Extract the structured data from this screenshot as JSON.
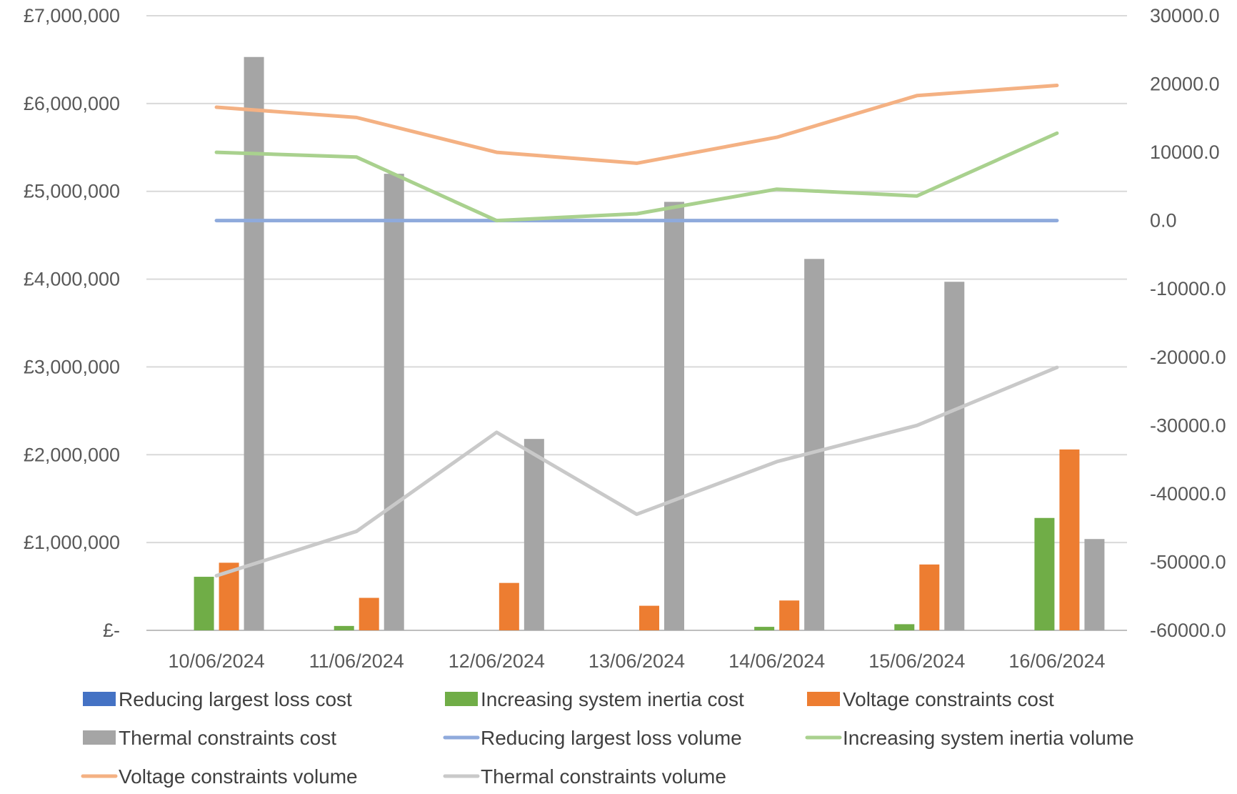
{
  "chart_data": {
    "type": "bar",
    "categories": [
      "10/06/2024",
      "11/06/2024",
      "12/06/2024",
      "13/06/2024",
      "14/06/2024",
      "15/06/2024",
      "16/06/2024"
    ],
    "y_left": {
      "range": [
        0,
        7000000
      ],
      "ticks": [
        0,
        1000000,
        2000000,
        3000000,
        4000000,
        5000000,
        6000000,
        7000000
      ],
      "tick_labels": [
        "£-",
        "£1,000,000",
        "£2,000,000",
        "£3,000,000",
        "£4,000,000",
        "£5,000,000",
        "£6,000,000",
        "£7,000,000"
      ]
    },
    "y_right": {
      "range": [
        -60000,
        30000
      ],
      "ticks": [
        -60000,
        -50000,
        -40000,
        -30000,
        -20000,
        -10000,
        0,
        10000,
        20000,
        30000
      ],
      "tick_labels": [
        "-60000.0",
        "-50000.0",
        "-40000.0",
        "-30000.0",
        "-20000.0",
        "-10000.0",
        "0.0",
        "10000.0",
        "20000.0",
        "30000.0"
      ]
    },
    "grid": true,
    "legend_position": "bottom",
    "bar_series": [
      {
        "name": "Reducing largest loss cost",
        "color": "#4472C4",
        "values": [
          0,
          0,
          0,
          0,
          0,
          0,
          0
        ]
      },
      {
        "name": "Increasing system inertia cost",
        "color": "#70AD47",
        "values": [
          610000,
          50000,
          0,
          0,
          40000,
          70000,
          1280000
        ]
      },
      {
        "name": "Voltage constraints cost",
        "color": "#ED7D31",
        "values": [
          770000,
          370000,
          540000,
          280000,
          340000,
          750000,
          2060000
        ]
      },
      {
        "name": "Thermal constraints cost",
        "color": "#A5A5A5",
        "values": [
          6530000,
          5200000,
          2180000,
          4880000,
          4230000,
          3970000,
          1040000
        ]
      }
    ],
    "line_series": [
      {
        "name": "Reducing largest loss volume",
        "color": "#8FAADC",
        "values": [
          0,
          0,
          0,
          0,
          0,
          0,
          0
        ]
      },
      {
        "name": "Increasing system inertia volume",
        "color": "#A9D18E",
        "values": [
          10000,
          9300,
          0,
          1000,
          4600,
          3600,
          12800
        ]
      },
      {
        "name": "Voltage constraints volume",
        "color": "#F4B183",
        "values": [
          16600,
          15100,
          10000,
          8400,
          12200,
          18300,
          19800
        ]
      },
      {
        "name": "Thermal constraints volume",
        "color": "#C9C9C9",
        "values": [
          -52000,
          -45500,
          -31000,
          -43000,
          -35300,
          -30000,
          -21500
        ]
      }
    ]
  }
}
